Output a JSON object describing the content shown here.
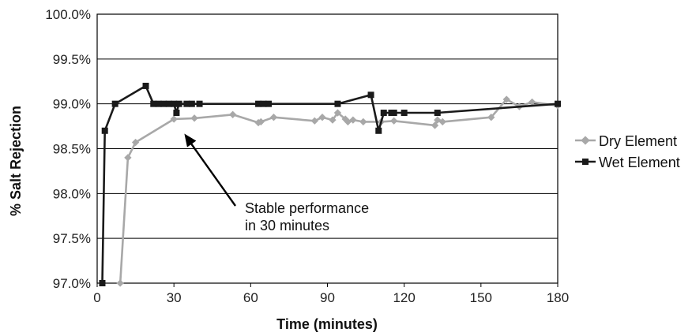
{
  "chart_data": {
    "type": "line",
    "xlabel": "Time (minutes)",
    "ylabel": "% Salt Rejection",
    "xlim": [
      0,
      180
    ],
    "ylim": [
      97.0,
      100.0
    ],
    "x_ticks": [
      0,
      30,
      60,
      90,
      120,
      150,
      180
    ],
    "x_tick_labels": [
      "0",
      "30",
      "60",
      "90",
      "120",
      "150",
      "180"
    ],
    "y_ticks": [
      97.0,
      97.5,
      98.0,
      98.5,
      99.0,
      99.5,
      100.0
    ],
    "y_tick_labels": [
      "97.0%",
      "97.5%",
      "98.0%",
      "98.5%",
      "99.0%",
      "99.5%",
      "100.0%"
    ],
    "grid": "horizontal",
    "legend_position": "right",
    "series": [
      {
        "name": "Dry Element",
        "color": "#a8a8a8",
        "marker": "diamond",
        "points": [
          [
            9,
            97.0
          ],
          [
            12,
            98.4
          ],
          [
            15,
            98.57
          ],
          [
            30,
            98.83
          ],
          [
            38,
            98.84
          ],
          [
            53,
            98.88
          ],
          [
            63,
            98.79
          ],
          [
            64,
            98.8
          ],
          [
            69,
            98.85
          ],
          [
            85,
            98.81
          ],
          [
            88,
            98.85
          ],
          [
            92,
            98.82
          ],
          [
            94,
            98.9
          ],
          [
            97,
            98.83
          ],
          [
            98,
            98.8
          ],
          [
            100,
            98.82
          ],
          [
            104,
            98.8
          ],
          [
            111,
            98.8
          ],
          [
            116,
            98.81
          ],
          [
            132,
            98.76
          ],
          [
            133,
            98.82
          ],
          [
            135,
            98.8
          ],
          [
            154,
            98.85
          ],
          [
            160,
            99.05
          ],
          [
            165,
            98.97
          ],
          [
            170,
            99.02
          ],
          [
            180,
            98.98
          ]
        ]
      },
      {
        "name": "Wet Element",
        "color": "#1a1a1a",
        "marker": "square",
        "points": [
          [
            2,
            97.0
          ],
          [
            3,
            98.7
          ],
          [
            7,
            99.0
          ],
          [
            19,
            99.2
          ],
          [
            22,
            99.0
          ],
          [
            24,
            99.0
          ],
          [
            26,
            99.0
          ],
          [
            28,
            99.0
          ],
          [
            30,
            99.0
          ],
          [
            31,
            98.9
          ],
          [
            32,
            99.0
          ],
          [
            35,
            99.0
          ],
          [
            37,
            99.0
          ],
          [
            40,
            99.0
          ],
          [
            63,
            99.0
          ],
          [
            65,
            99.0
          ],
          [
            67,
            99.0
          ],
          [
            94,
            99.0
          ],
          [
            107,
            99.1
          ],
          [
            110,
            98.7
          ],
          [
            112,
            98.9
          ],
          [
            115,
            98.9
          ],
          [
            116,
            98.9
          ],
          [
            120,
            98.9
          ],
          [
            133,
            98.9
          ],
          [
            180,
            99.0
          ]
        ]
      }
    ],
    "annotation": {
      "lines": [
        "Stable performance",
        "in 30 minutes"
      ],
      "points_to": [
        31,
        98.72
      ]
    }
  }
}
